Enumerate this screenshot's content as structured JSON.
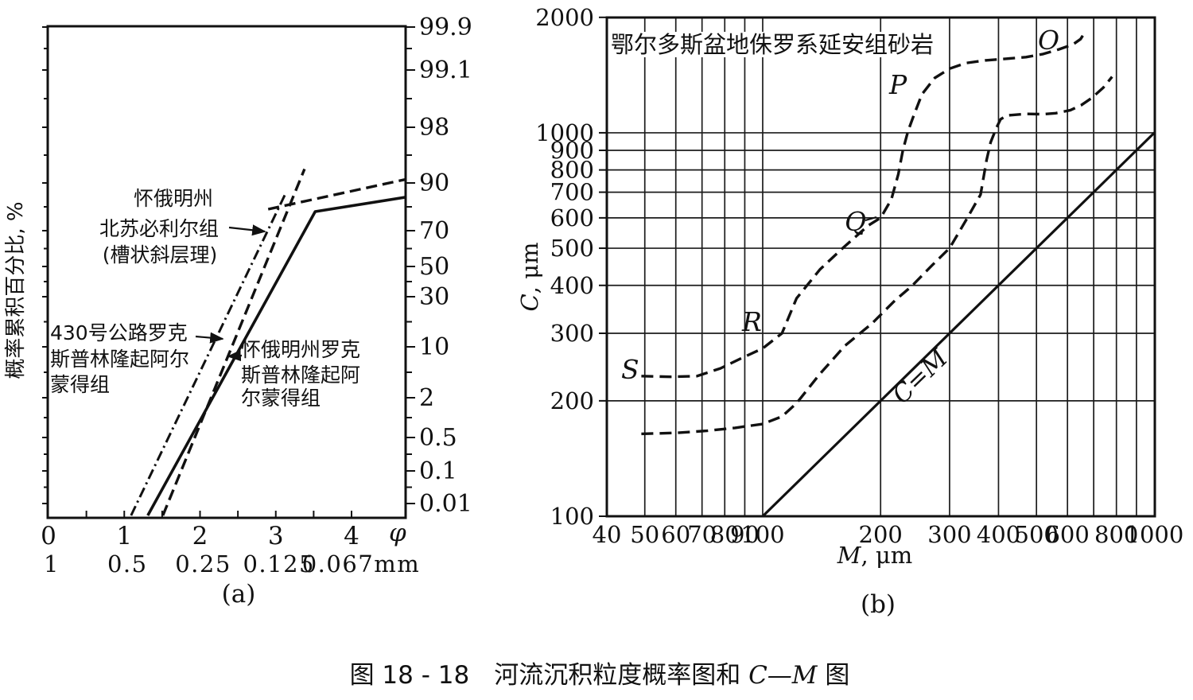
{
  "caption": {
    "number": "图 18 - 18　",
    "text": "河流沉积粒度概率图和 ",
    "cm": "C—M",
    "suffix": " 图"
  },
  "plot_a": {
    "sublabel": "(a)",
    "ylabel": "概率累积百分比, %",
    "phi_symbol": "φ",
    "x_phi_labels": [
      "0",
      "1",
      "2",
      "3",
      "4"
    ],
    "x_mm_labels": [
      "1",
      "0.5",
      "0.25",
      "0.125",
      "0.067mm"
    ],
    "right_labels": [
      "99.9",
      "99.1",
      "98",
      "90",
      "70",
      "50",
      "30",
      "10",
      "2",
      "0.5",
      "0.1",
      "0.01"
    ],
    "annotations": [
      {
        "lines": [
          "怀俄明州",
          "北苏必利尔组",
          "(槽状斜层理)"
        ]
      },
      {
        "lines": [
          "430号公路罗克",
          "斯普林隆起阿尔",
          "蒙得组"
        ]
      },
      {
        "lines": [
          "怀俄明州罗克",
          "斯普林隆起阿",
          "尔蒙得组"
        ]
      }
    ]
  },
  "plot_b": {
    "sublabel": "(b)",
    "title": "鄂尔多斯盆地侏罗系延安组砂岩",
    "xlabel_var": "M",
    "xlabel_unit": ", μm",
    "ylabel_var": "C",
    "ylabel_unit": ", μm",
    "x_labels": [
      "40",
      "50",
      "60",
      "70",
      "80",
      "90",
      "100",
      "200",
      "300",
      "400",
      "500",
      "600",
      "800",
      "1000"
    ],
    "y_labels": [
      "2000",
      "1000",
      "900",
      "800",
      "700",
      "600",
      "500",
      "400",
      "300",
      "200",
      "100"
    ],
    "curve_labels": {
      "o": "O",
      "p": "P",
      "q": "Q",
      "r": "R",
      "s": "S",
      "cm": "C=M"
    }
  },
  "chart_data": [
    {
      "type": "line",
      "id": "probability-plot-a",
      "title": "",
      "xlabel": "φ (grain size; mm equivalents 1, 0.5, 0.25, 0.125, 0.067)",
      "ylabel": "概率累积百分比, %",
      "x_axis": {
        "min": 0,
        "max": 4.7,
        "ticks": [
          0,
          1,
          2,
          3,
          4
        ],
        "minor_tick_step": 0.5
      },
      "y_axis": {
        "type": "probability",
        "tick_labels": [
          99.9,
          99.1,
          98,
          90,
          70,
          50,
          30,
          10,
          2,
          0.5,
          0.1,
          0.01
        ]
      },
      "series": [
        {
          "name": "怀俄明州北苏必利尔组(槽状斜层理)",
          "style": "dashed",
          "segments": [
            [
              [
                1.51,
                0.005
              ],
              [
                3.38,
                92
              ]
            ],
            [
              [
                2.9,
                79
              ],
              [
                4.71,
                90.5
              ]
            ]
          ]
        },
        {
          "name": "怀俄明州罗克斯普林隆起阿尔蒙得组",
          "style": "solid",
          "segments": [
            [
              [
                1.31,
                0.005
              ],
              [
                3.52,
                78
              ],
              [
                4.71,
                84
              ]
            ]
          ]
        },
        {
          "name": "430号公路罗克斯普林隆起阿尔蒙得组",
          "style": "dash-dot",
          "segments": [
            [
              [
                1.09,
                0.005
              ],
              [
                3.12,
                85
              ]
            ]
          ]
        }
      ]
    },
    {
      "type": "line",
      "id": "cm-diagram-b",
      "title": "鄂尔多斯盆地侏罗系延安组砂岩",
      "xlabel": "M, μm",
      "ylabel": "C, μm",
      "x_axis": {
        "scale": "log",
        "min": 40,
        "max": 1000,
        "tick_labels": [
          40,
          50,
          60,
          70,
          80,
          90,
          100,
          200,
          300,
          400,
          500,
          600,
          800,
          1000
        ],
        "gridlines": [
          50,
          60,
          70,
          80,
          90,
          100,
          200,
          300,
          400,
          500,
          600,
          700,
          800,
          900
        ]
      },
      "y_axis": {
        "scale": "log",
        "min": 100,
        "max": 2000,
        "tick_labels": [
          2000,
          1000,
          900,
          800,
          700,
          600,
          500,
          400,
          300,
          200,
          100
        ],
        "gridlines": [
          200,
          300,
          400,
          500,
          600,
          700,
          800,
          900,
          1000
        ]
      },
      "series": [
        {
          "name": "upper-envelope-S-R-Q-P-O",
          "style": "dashed",
          "points": [
            [
              49,
              232
            ],
            [
              58,
              231
            ],
            [
              68,
              232
            ],
            [
              78,
              243
            ],
            [
              88,
              258
            ],
            [
              100,
              274
            ],
            [
              112,
              300
            ],
            [
              122,
              370
            ],
            [
              140,
              440
            ],
            [
              160,
              500
            ],
            [
              186,
              573
            ],
            [
              200,
              600
            ],
            [
              213,
              670
            ],
            [
              222,
              780
            ],
            [
              228,
              900
            ],
            [
              235,
              1010
            ],
            [
              243,
              1110
            ],
            [
              255,
              1260
            ],
            [
              275,
              1390
            ],
            [
              300,
              1470
            ],
            [
              330,
              1520
            ],
            [
              370,
              1545
            ],
            [
              420,
              1560
            ],
            [
              470,
              1575
            ],
            [
              520,
              1605
            ],
            [
              570,
              1650
            ],
            [
              620,
              1700
            ],
            [
              648,
              1755
            ],
            [
              665,
              1830
            ]
          ]
        },
        {
          "name": "lower-envelope",
          "style": "dashed",
          "points": [
            [
              49,
              164
            ],
            [
              60,
              165
            ],
            [
              72,
              167
            ],
            [
              85,
              170
            ],
            [
              100,
              174
            ],
            [
              112,
              182
            ],
            [
              122,
              197
            ],
            [
              140,
              235
            ],
            [
              162,
              278
            ],
            [
              190,
              318
            ],
            [
              218,
              366
            ],
            [
              240,
              398
            ],
            [
              270,
              450
            ],
            [
              300,
              500
            ],
            [
              330,
              590
            ],
            [
              360,
              690
            ],
            [
              373,
              850
            ],
            [
              382,
              945
            ],
            [
              395,
              1030
            ],
            [
              405,
              1085
            ],
            [
              420,
              1110
            ],
            [
              470,
              1120
            ],
            [
              520,
              1118
            ],
            [
              560,
              1125
            ],
            [
              610,
              1145
            ],
            [
              650,
              1180
            ],
            [
              690,
              1230
            ],
            [
              740,
              1310
            ],
            [
              780,
              1400
            ]
          ]
        },
        {
          "name": "C=M line",
          "style": "solid",
          "points": [
            [
              100,
              100
            ],
            [
              1000,
              1000
            ]
          ]
        }
      ]
    }
  ]
}
